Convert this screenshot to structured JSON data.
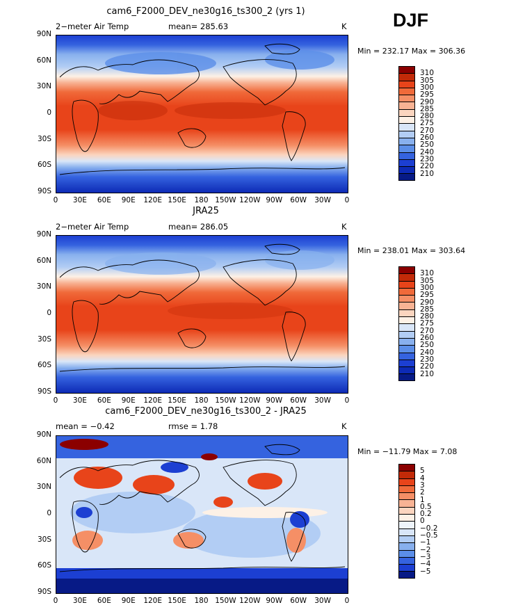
{
  "season": "DJF",
  "panels": [
    {
      "title": "cam6_F2000_DEV_ne30g16_ts300_2 (yrs 1)",
      "left_label": "2−meter Air Temp",
      "center_label": "mean= 285.63",
      "right_label": "K",
      "minmax": "Min = 232.17 Max = 306.36",
      "levels": [
        "310",
        "305",
        "300",
        "295",
        "290",
        "285",
        "280",
        "275",
        "270",
        "260",
        "250",
        "240",
        "230",
        "220",
        "210"
      ],
      "colors": [
        "#8b0000",
        "#c22a08",
        "#e8441a",
        "#f06a3a",
        "#f58f66",
        "#f8b394",
        "#fbd5bf",
        "#fdf1e6",
        "#d9e6f8",
        "#b2cdf4",
        "#88b0ee",
        "#5b8ee8",
        "#3563df",
        "#1c3fd2",
        "#0d2ab5",
        "#071a86"
      ],
      "lat_labels": [
        "90N",
        "60N",
        "30N",
        "0",
        "30S",
        "60S",
        "90S"
      ],
      "lon_labels": [
        "0",
        "30E",
        "60E",
        "90E",
        "120E",
        "150E",
        "180",
        "150W",
        "120W",
        "90W",
        "60W",
        "30W",
        "0"
      ]
    },
    {
      "title": "JRA25",
      "left_label": "2−meter Air Temp",
      "center_label": "mean= 286.05",
      "right_label": "K",
      "minmax": "Min = 238.01 Max = 303.64",
      "levels": [
        "310",
        "305",
        "300",
        "295",
        "290",
        "285",
        "280",
        "275",
        "270",
        "260",
        "250",
        "240",
        "230",
        "220",
        "210"
      ],
      "colors": [
        "#8b0000",
        "#c22a08",
        "#e8441a",
        "#f06a3a",
        "#f58f66",
        "#f8b394",
        "#fbd5bf",
        "#fdf1e6",
        "#d9e6f8",
        "#b2cdf4",
        "#88b0ee",
        "#5b8ee8",
        "#3563df",
        "#1c3fd2",
        "#0d2ab5",
        "#071a86"
      ],
      "lat_labels": [
        "90N",
        "60N",
        "30N",
        "0",
        "30S",
        "60S",
        "90S"
      ],
      "lon_labels": [
        "0",
        "30E",
        "60E",
        "90E",
        "120E",
        "150E",
        "180",
        "150W",
        "120W",
        "90W",
        "60W",
        "30W",
        "0"
      ]
    },
    {
      "title": "cam6_F2000_DEV_ne30g16_ts300_2 - JRA25",
      "left_label": "mean =   −0.42",
      "center_label": "rmse =    1.78",
      "right_label": "K",
      "minmax": "Min = −11.79 Max =    7.08",
      "levels": [
        "5",
        "4",
        "3",
        "2",
        "1",
        "0.5",
        "0.2",
        "0",
        "−0.2",
        "−0.5",
        "−1",
        "−2",
        "−3",
        "−4",
        "−5"
      ],
      "colors": [
        "#8b0000",
        "#c22a08",
        "#e8441a",
        "#f06a3a",
        "#f58f66",
        "#f8b394",
        "#fbd5bf",
        "#fdf1e6",
        "#eef4fb",
        "#d9e6f8",
        "#b2cdf4",
        "#88b0ee",
        "#5b8ee8",
        "#3563df",
        "#1c3fd2",
        "#071a86"
      ],
      "lat_labels": [
        "90N",
        "60N",
        "30N",
        "0",
        "30S",
        "60S",
        "90S"
      ],
      "lon_labels": [
        "0",
        "30E",
        "60E",
        "90E",
        "120E",
        "150E",
        "180",
        "150W",
        "120W",
        "90W",
        "60W",
        "30W",
        "0"
      ]
    }
  ]
}
